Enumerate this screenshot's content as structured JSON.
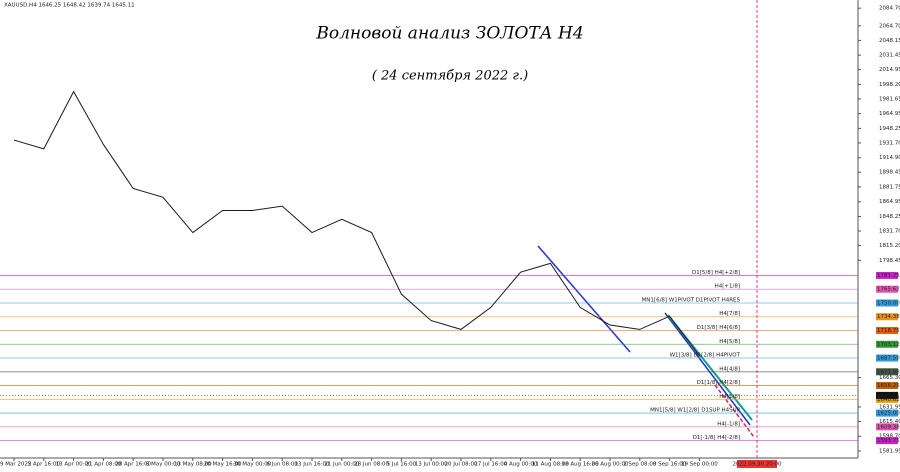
{
  "chart_data": {
    "type": "line",
    "header": "XAUUSD,H4  1646.25 1648.42 1639.74 1645.11",
    "title": "Волновой анализ ЗОЛОТА H4",
    "subtitle": "( 24 сентября 2022 г.)",
    "categories": [
      "29 Mar 2022",
      "5 Apr 16:00",
      "13 Apr 00:00",
      "21 Apr 08:00",
      "28 Apr 16:00",
      "6 May 00:00",
      "13 May 08:00",
      "20 May 16:00",
      "30 May 00:00",
      "6 Jun 08:00",
      "13 Jun 16:00",
      "21 Jun 00:00",
      "28 Jun 08:00",
      "5 Jul 16:00",
      "13 Jul 00:00",
      "20 Jul 08:00",
      "27 Jul 16:00",
      "4 Aug 00:00",
      "11 Aug 08:00",
      "18 Aug 16:00",
      "26 Aug 00:00",
      "2 Sep 08:00",
      "9 Sep 16:00",
      "19 Sep 00:00"
    ],
    "series": [
      {
        "name": "XAUUSD,H4",
        "color": "#1a1a1a",
        "values": [
          1935,
          1925,
          1990,
          1930,
          1880,
          1870,
          1830,
          1855,
          1855,
          1860,
          1830,
          1845,
          1830,
          1760,
          1730,
          1720,
          1745,
          1785,
          1795,
          1745,
          1725,
          1720,
          1735,
          1690
        ]
      }
    ],
    "ylim": [
      1574,
      2094
    ],
    "yticks": [
      {
        "value": 2084.7,
        "label": "2084.70"
      },
      {
        "value": 2064.7,
        "label": "2064.70"
      },
      {
        "value": 2048.15,
        "label": "2048.15"
      },
      {
        "value": 2031.45,
        "label": "2031.45"
      },
      {
        "value": 2014.95,
        "label": "2014.95"
      },
      {
        "value": 1998.2,
        "label": "1998.20"
      },
      {
        "value": 1981.65,
        "label": "1981.65"
      },
      {
        "value": 1964.95,
        "label": "1964.95"
      },
      {
        "value": 1948.25,
        "label": "1948.25"
      },
      {
        "value": 1931.7,
        "label": "1931.70"
      },
      {
        "value": 1914.9,
        "label": "1914.90"
      },
      {
        "value": 1898.45,
        "label": "1898.45"
      },
      {
        "value": 1881.75,
        "label": "1881.75"
      },
      {
        "value": 1864.95,
        "label": "1864.95"
      },
      {
        "value": 1848.25,
        "label": "1848.25"
      },
      {
        "value": 1831.7,
        "label": "1831.70"
      },
      {
        "value": 1815.2,
        "label": "1815.20"
      },
      {
        "value": 1798.45,
        "label": "1798.45"
      },
      {
        "value": 1665.3,
        "label": "1665.30"
      },
      {
        "value": 1631.95,
        "label": "1631.95"
      },
      {
        "value": 1615.4,
        "label": "1615.40"
      },
      {
        "value": 1598.7,
        "label": "1598.70"
      },
      {
        "value": 1581.95,
        "label": "1581.95"
      }
    ],
    "levels": [
      {
        "value": 1781.25,
        "label": "1781.25",
        "text": "D1[5/8] H4[+2/8]",
        "color": "#cc22cc"
      },
      {
        "value": 1765.62,
        "label": "1765.62",
        "text": "H4[+1/8]",
        "color": "#e055b0"
      },
      {
        "value": 1750,
        "label": "1750.00",
        "text": "MN1[6/8] W1PIVOT D1PIVOT H4RES",
        "color": "#3399dd"
      },
      {
        "value": 1734.38,
        "label": "1734.38",
        "text": "H4[7/8]",
        "color": "#e89020"
      },
      {
        "value": 1718.75,
        "label": "1718.75",
        "text": "D1[3/8] H4[6/8]",
        "color": "#e06010"
      },
      {
        "value": 1703.12,
        "label": "1703.12",
        "text": "H4[5/8]",
        "color": "#339933"
      },
      {
        "value": 1687.5,
        "label": "1687.50",
        "text": "W1[3/8] D1[2/8] H4PIVOT",
        "color": "#3399dd"
      },
      {
        "value": 1671.88,
        "label": "1671.88",
        "text": "H4[4/8]",
        "color": "#445544"
      },
      {
        "value": 1656.25,
        "label": "1656.25",
        "text": "D1[1/8] H4[2/8]",
        "color": "#c06000"
      },
      {
        "value": 1640.62,
        "label": "1640.62",
        "text": "H4[1/8]",
        "color": "#e0a000"
      },
      {
        "value": 1625,
        "label": "1625.00",
        "text": "MN1[5/8] W1[2/8] D1SUP H4SUP",
        "color": "#3399dd"
      },
      {
        "value": 1609.38,
        "label": "1609.38",
        "text": "H4[-1/8]",
        "color": "#e055b0"
      },
      {
        "value": 1593.75,
        "label": "1593.75",
        "text": "D1[-1/8] H4[-2/8]",
        "color": "#cc22cc"
      }
    ],
    "last_price": {
      "value": 1645.11,
      "label": "1645.11"
    },
    "future_marker": "2022.09.30 20:00"
  }
}
